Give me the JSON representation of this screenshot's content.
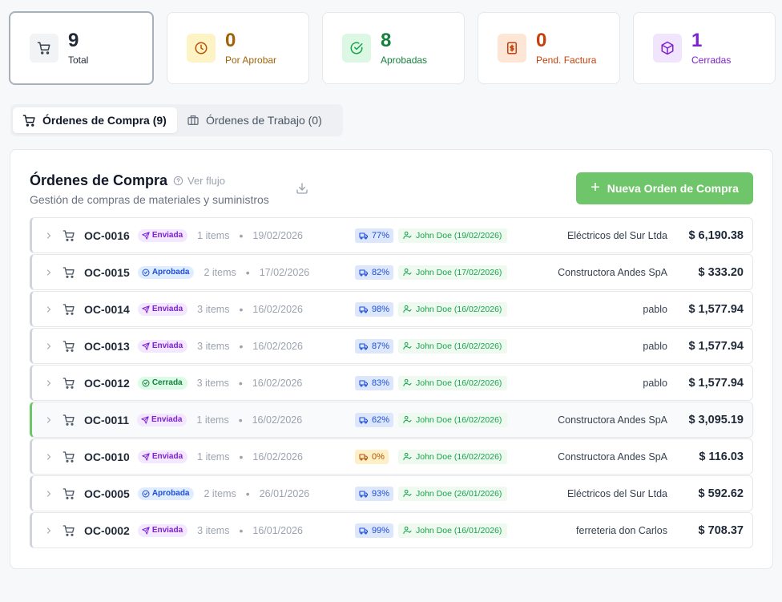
{
  "stats": [
    {
      "value": "9",
      "label": "Total",
      "icon": "cart-icon",
      "color": "#1f2937",
      "label_color": "#1f2937",
      "bg": "#f1f3f5"
    },
    {
      "value": "0",
      "label": "Por Aprobar",
      "icon": "clock-icon",
      "color": "#a16207",
      "label_color": "#a16207",
      "bg": "#fdf3c4"
    },
    {
      "value": "8",
      "label": "Aprobadas",
      "icon": "check-circle-icon",
      "color": "#15803d",
      "label_color": "#15803d",
      "bg": "#dcf7e3"
    },
    {
      "value": "0",
      "label": "Pend. Factura",
      "icon": "dollar-icon",
      "color": "#c2410c",
      "label_color": "#c2410c",
      "bg": "#fde6d6"
    },
    {
      "value": "1",
      "label": "Cerradas",
      "icon": "box-icon",
      "color": "#7e22ce",
      "label_color": "#7e22ce",
      "bg": "#f1e4fd"
    }
  ],
  "tabs": {
    "compra": "Órdenes de Compra (9)",
    "trabajo": "Órdenes de Trabajo (0)"
  },
  "panel": {
    "title": "Órdenes de Compra",
    "flow": "Ver flujo",
    "subtitle": "Gestión de compras de materiales y suministros",
    "new_button": "Nueva Orden de Compra"
  },
  "orders": [
    {
      "code": "OC-0016",
      "status": "Enviada",
      "items": "1 items",
      "date": "19/02/2026",
      "pct": "77%",
      "user": "John Doe (19/02/2026)",
      "supplier": "Eléctricos del Sur Ltda",
      "amount": "$ 6,190.38"
    },
    {
      "code": "OC-0015",
      "status": "Aprobada",
      "items": "2 items",
      "date": "17/02/2026",
      "pct": "82%",
      "user": "John Doe (17/02/2026)",
      "supplier": "Constructora Andes SpA",
      "amount": "$ 333.20"
    },
    {
      "code": "OC-0014",
      "status": "Enviada",
      "items": "3 items",
      "date": "16/02/2026",
      "pct": "98%",
      "user": "John Doe (16/02/2026)",
      "supplier": "pablo",
      "amount": "$ 1,577.94"
    },
    {
      "code": "OC-0013",
      "status": "Enviada",
      "items": "3 items",
      "date": "16/02/2026",
      "pct": "87%",
      "user": "John Doe (16/02/2026)",
      "supplier": "pablo",
      "amount": "$ 1,577.94"
    },
    {
      "code": "OC-0012",
      "status": "Cerrada",
      "items": "3 items",
      "date": "16/02/2026",
      "pct": "83%",
      "user": "John Doe (16/02/2026)",
      "supplier": "pablo",
      "amount": "$ 1,577.94"
    },
    {
      "code": "OC-0011",
      "status": "Enviada",
      "items": "1 items",
      "date": "16/02/2026",
      "pct": "62%",
      "user": "John Doe (16/02/2026)",
      "supplier": "Constructora Andes SpA",
      "amount": "$ 3,095.19"
    },
    {
      "code": "OC-0010",
      "status": "Enviada",
      "items": "1 items",
      "date": "16/02/2026",
      "pct": "0%",
      "user": "John Doe (16/02/2026)",
      "supplier": "Constructora Andes SpA",
      "amount": "$ 116.03"
    },
    {
      "code": "OC-0005",
      "status": "Aprobada",
      "items": "2 items",
      "date": "26/01/2026",
      "pct": "93%",
      "user": "John Doe (26/01/2026)",
      "supplier": "Eléctricos del Sur Ltda",
      "amount": "$ 592.62"
    },
    {
      "code": "OC-0002",
      "status": "Enviada",
      "items": "3 items",
      "date": "16/01/2026",
      "pct": "99%",
      "user": "John Doe (16/01/2026)",
      "supplier": "ferreteria don Carlos",
      "amount": "$ 708.37"
    }
  ]
}
